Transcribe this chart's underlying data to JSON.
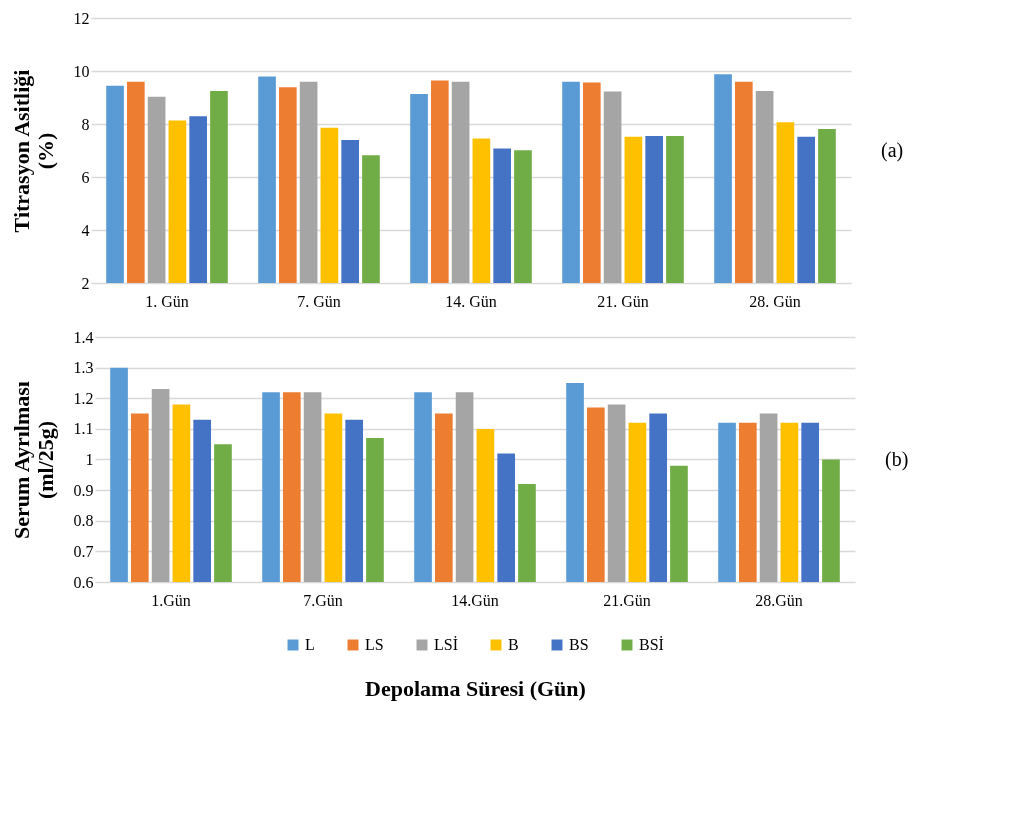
{
  "chart_data": [
    {
      "type": "bar",
      "ylabel": "Titrasyon Asitliği (%)",
      "categories": [
        "1. Gün",
        "7. Gün",
        "14. Gün",
        "21. Gün",
        "28. Gün"
      ],
      "ylim": [
        2,
        12
      ],
      "yticks": [
        2,
        4,
        6,
        8,
        10,
        12
      ],
      "grid": "y",
      "annotations": [
        "(a)"
      ],
      "series": [
        {
          "color": "#5b9bd5",
          "values": [
            9.44,
            9.79,
            9.13,
            9.59,
            9.88
          ]
        },
        {
          "color": "#ed7d31",
          "values": [
            9.59,
            9.39,
            9.64,
            9.57,
            9.59
          ]
        },
        {
          "color": "#a5a5a5",
          "values": [
            9.03,
            9.59,
            9.59,
            9.23,
            9.25
          ]
        },
        {
          "color": "#ffc000",
          "values": [
            8.13,
            7.86,
            7.45,
            7.52,
            8.07
          ]
        },
        {
          "color": "#4472c4",
          "values": [
            8.29,
            7.4,
            7.08,
            7.55,
            7.52
          ]
        },
        {
          "color": "#70ad47",
          "values": [
            9.25,
            6.82,
            7.01,
            7.55,
            7.81
          ]
        }
      ]
    },
    {
      "type": "bar",
      "ylabel": "Serum Ayrılması (ml/25g)",
      "xlabel": "Depolama Süresi (Gün)",
      "categories": [
        "1.Gün",
        "7.Gün",
        "14.Gün",
        "21.Gün",
        "28.Gün"
      ],
      "ylim": [
        0.6,
        1.4
      ],
      "yticks": [
        0.6,
        0.7,
        0.8,
        0.9,
        1,
        1.1,
        1.2,
        1.3,
        1.4
      ],
      "grid": "y",
      "legend": "bottom",
      "annotations": [
        "(b)"
      ],
      "series": [
        {
          "name": "L",
          "color": "#5b9bd5",
          "values": [
            1.3,
            1.22,
            1.22,
            1.25,
            1.12
          ]
        },
        {
          "name": "LS",
          "color": "#ed7d31",
          "values": [
            1.15,
            1.22,
            1.15,
            1.17,
            1.12
          ]
        },
        {
          "name": "LSİ",
          "color": "#a5a5a5",
          "values": [
            1.23,
            1.22,
            1.22,
            1.18,
            1.15
          ]
        },
        {
          "name": "B",
          "color": "#ffc000",
          "values": [
            1.18,
            1.15,
            1.1,
            1.12,
            1.12
          ]
        },
        {
          "name": "BS",
          "color": "#4472c4",
          "values": [
            1.13,
            1.13,
            1.02,
            1.15,
            1.12
          ]
        },
        {
          "name": "BSİ",
          "color": "#70ad47",
          "values": [
            1.05,
            1.07,
            0.92,
            0.98,
            1.0
          ]
        }
      ]
    }
  ]
}
